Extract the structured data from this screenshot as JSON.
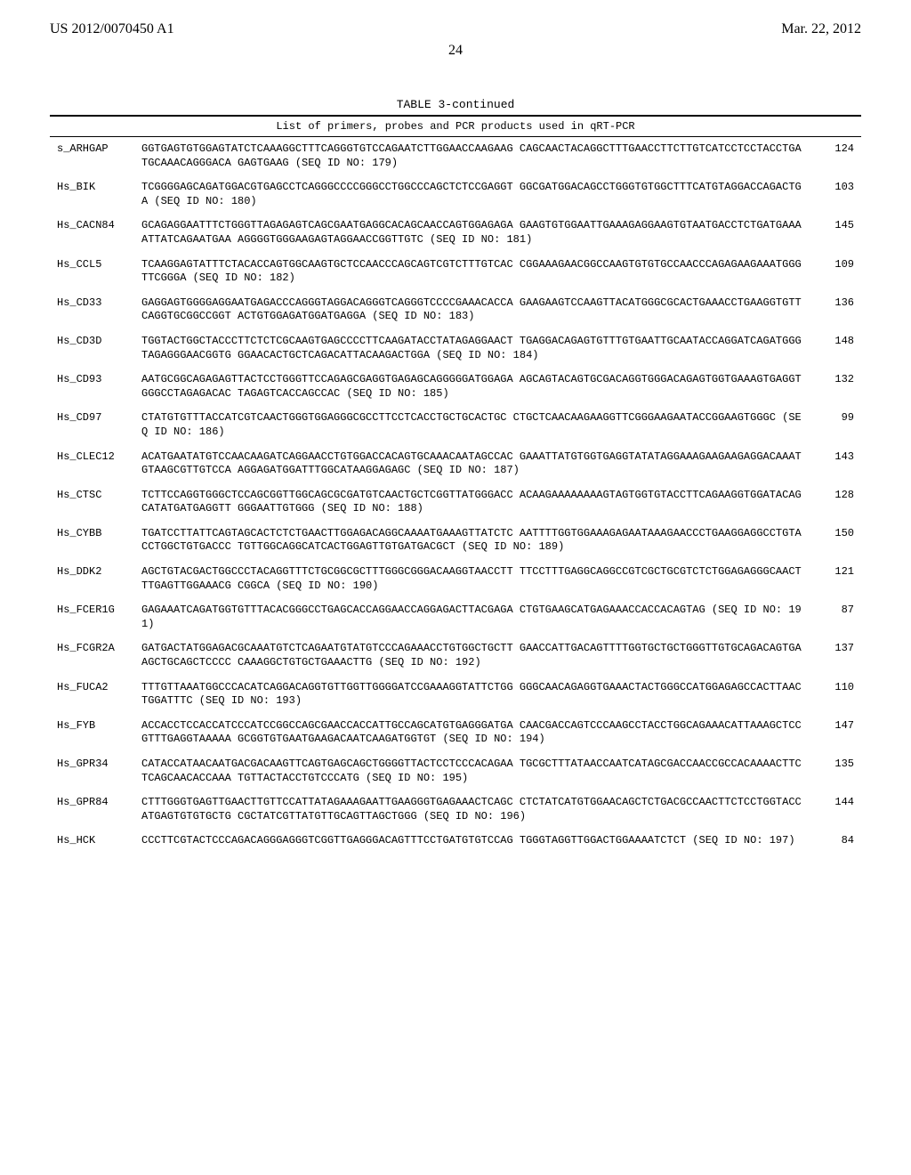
{
  "header": {
    "left": "US 2012/0070450 A1",
    "right": "Mar. 22, 2012"
  },
  "page_number": "24",
  "table": {
    "caption": "TABLE 3-continued",
    "header": "List of primers, probes and PCR products used in qRT-PCR",
    "columns": [
      "name",
      "sequence",
      "length"
    ],
    "rows": [
      {
        "name": "s_ARHGAP",
        "seq": "GGTGAGTGTGGAGTATCTCAAAGGCTTTCAGGGTGTCCAGAATCTTGGAACCAAGAAG CAGCAACTACAGGCTTTGAACCTTCTTGTCATCCTCCTACCTGATGCAAACAGGGACA GAGTGAAG (SEQ ID NO: 179)",
        "len": "124"
      },
      {
        "name": "Hs_BIK",
        "seq": "TCGGGGAGCAGATGGACGTGAGCCTCAGGGCCCCGGGCCTGGCCCAGCTCTCCGAGGT GGCGATGGACAGCCTGGGTGTGGCTTTCATGTAGGACCAGACTGA (SEQ ID NO: 180)",
        "len": "103"
      },
      {
        "name": "Hs_CACN84",
        "seq": "GCAGAGGAATTTCTGGGTTAGAGAGTCAGCGAATGAGGCACAGCAACCAGTGGAGAGA GAAGTGTGGAATTGAAAGAGGAAGTGTAATGACCTCTGATGAAAATTATCAGAATGAA AGGGGTGGGAAGAGTAGGAACCGGTTGTC (SEQ ID NO: 181)",
        "len": "145"
      },
      {
        "name": "Hs_CCL5",
        "seq": "TCAAGGAGTATTTCTACACCAGTGGCAAGTGCTCCAACCCAGCAGTCGTCTTTGTCAC CGGAAAGAACGGCCAAGTGTGTGCCAACCCAGAGAAGAAATGGGTTCGGGA (SEQ ID NO: 182)",
        "len": "109"
      },
      {
        "name": "Hs_CD33",
        "seq": "GAGGAGTGGGGAGGAATGAGACCCAGGGTAGGACAGGGTCAGGGTCCCCGAAACACCA GAAGAAGTCCAAGTTACATGGGCGCACTGAAACCTGAAGGTGTTCAGGTGCGGCCGGT ACTGTGGAGATGGATGAGGA (SEQ ID NO: 183)",
        "len": "136"
      },
      {
        "name": "Hs_CD3D",
        "seq": "TGGTACTGGCTACCCTTCTCTCGCAAGTGAGCCCCTTCAAGATACCTATAGAGGAACT TGAGGACAGAGTGTTTGTGAATTGCAATACCAGGATCAGATGGGTAGAGGGAACGGTG GGAACACTGCTCAGACATTACAAGACTGGA (SEQ ID NO: 184)",
        "len": "148"
      },
      {
        "name": "Hs_CD93",
        "seq": "AATGCGGCAGAGAGTTACTCCTGGGTTCCAGAGCGAGGTGAGAGCAGGGGGATGGAGA AGCAGTACAGTGCGACAGGTGGGACAGAGTGGTGAAAGTGAGGTGGGCCTAGAGACAC TAGAGTCACCAGCCAC (SEQ ID NO: 185)",
        "len": "132"
      },
      {
        "name": "Hs_CD97",
        "seq": "CTATGTGTTTACCATCGTCAACTGGGTGGAGGGCGCCTTCCTCACCTGCTGCACTGC CTGCTCAACAAGAAGGTTCGGGAAGAATACCGGAAGTGGGC (SEQ ID NO: 186)",
        "len": "99"
      },
      {
        "name": "Hs_CLEC12",
        "seq": "ACATGAATATGTCCAACAAGATCAGGAACCTGTGGACCACAGTGCAAACAATAGCCAC GAAATTATGTGGTGAGGTATATAGGAAAGAAGAAGAGGACAAATGTAAGCGTTGTCCA AGGAGATGGATTTGGCATAAGGAGAGC (SEQ ID NO: 187)",
        "len": "143"
      },
      {
        "name": "Hs_CTSC",
        "seq": "TCTTCCAGGTGGGCTCCAGCGGTTGGCAGCGCGATGTCAACTGCTCGGTTATGGGACC ACAAGAAAAAAAAGTAGTGGTGTACCTTCAGAAGGTGGATACAGCATATGATGAGGTT GGGAATTGTGGG (SEQ ID NO: 188)",
        "len": "128"
      },
      {
        "name": "Hs_CYBB",
        "seq": "TGATCCTTATTCAGTAGCACTCTCTGAACTTGGAGACAGGCAAAATGAAAGTTATCTC AATTTTGGTGGAAAGAGAATAAAGAACCCTGAAGGAGGCCTGTACCTGGCTGTGACCC TGTTGGCAGGCATCACTGGAGTTGTGATGACGCT (SEQ ID NO: 189)",
        "len": "150"
      },
      {
        "name": "Hs_DDK2",
        "seq": "AGCTGTACGACTGGCCCTACAGGTTTCTGCGGCGCTTTGGGCGGGACAAGGTAACCTT TTCCTTTGAGGCAGGCCGTCGCTGCGTCTCTGGAGAGGGCAACTTTGAGTTGGAAACG CGGCA (SEQ ID NO: 190)",
        "len": "121"
      },
      {
        "name": "Hs_FCER1G",
        "seq": "GAGAAATCAGATGGTGTTTACACGGGCCTGAGCACCAGGAACCAGGAGACTTACGAGA CTGTGAAGCATGAGAAACCACCACAGTAG (SEQ ID NO: 191)",
        "len": "87"
      },
      {
        "name": "Hs_FCGR2A",
        "seq": "GATGACTATGGAGACGCAAATGTCTCAGAATGTATGTCCCAGAAACCTGTGGCTGCTT GAACCATTGACAGTTTTGGTGCTGCTGGGTTGTGCAGACAGTGAAGCTGCAGCTCCCC CAAAGGCTGTGCTGAAACTTG (SEQ ID NO: 192)",
        "len": "137"
      },
      {
        "name": "Hs_FUCA2",
        "seq": "TTTGTTAAATGGCCCACATCAGGACAGGTGTTGGTTGGGGATCCGAAAGGTATTCTGG GGGCAACAGAGGTGAAACTACTGGGCCATGGAGAGCCACTTAACTGGATTTC (SEQ ID NO: 193)",
        "len": "110"
      },
      {
        "name": "Hs_FYB",
        "seq": "ACCACCTCCACCATCCCATCCGGCCAGCGAACCACCATTGCCAGCATGTGAGGGATGA CAACGACCAGTCCCAAGCCTACCTGGCAGAAACATTAAAGCTCCGTTTGAGGTAAAAA GCGGTGTGAATGAAGACAATCAAGATGGTGT (SEQ ID NO: 194)",
        "len": "147"
      },
      {
        "name": "Hs_GPR34",
        "seq": "CATACCATAACAATGACGACAAGTTCAGTGAGCAGCTGGGGTTACTCCTCCCACAGAA TGCGCTTTATAACCAATCATAGCGACCAACCGCCACAAAACTTCTCAGCAACACCAAA TGTTACTACCTGTCCCATG (SEQ ID NO: 195)",
        "len": "135"
      },
      {
        "name": "Hs_GPR84",
        "seq": "CTTTGGGTGAGTTGAACTTGTTCCATTATAGAAAGAATTGAAGGGTGAGAAACTCAGC CTCTATCATGTGGAACAGCTCTGACGCCAACTTCTCCTGGTACCATGAGTGTGTGCTG CGCTATCGTTATGTTGCAGTTAGCTGGG (SEQ ID NO: 196)",
        "len": "144"
      },
      {
        "name": "Hs_HCK",
        "seq": "CCCTTCGTACTCCCAGACAGGGAGGGTCGGTTGAGGGACAGTTTCCTGATGTGTCCAG TGGGTAGGTTGGACTGGAAAATCTCT (SEQ ID NO: 197)",
        "len": "84"
      }
    ]
  }
}
